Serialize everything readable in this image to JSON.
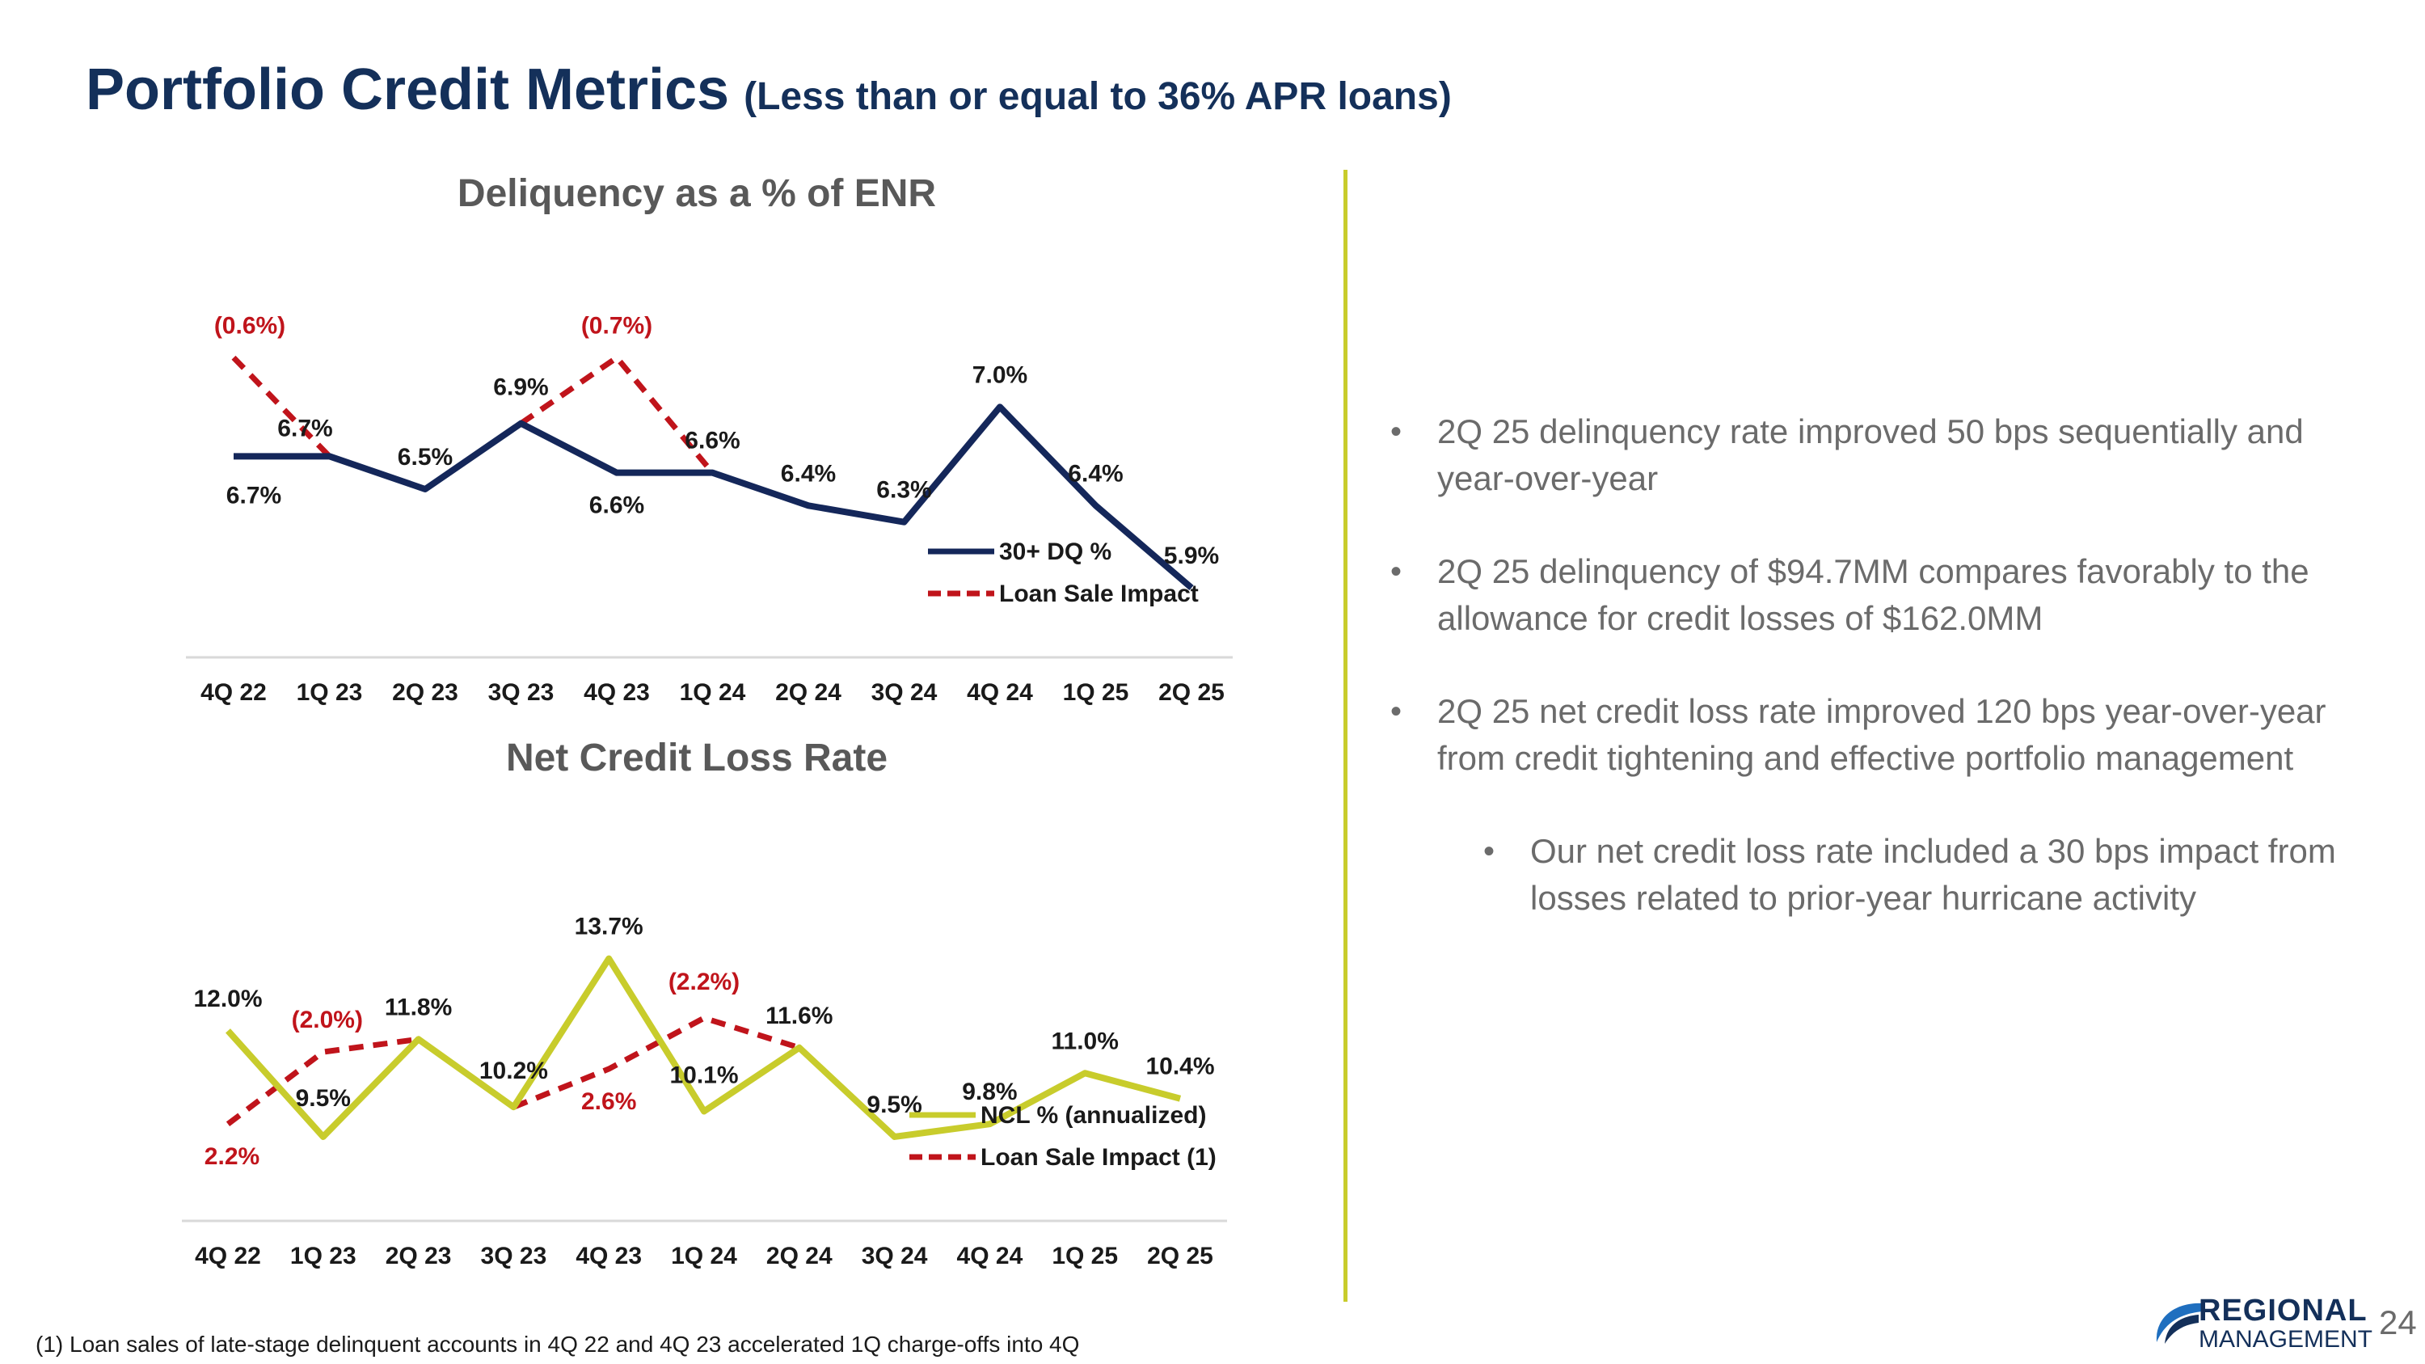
{
  "header": {
    "title": "Portfolio Credit Metrics",
    "subtitle": "(Less than or equal to 36% APR loans)"
  },
  "chart_data": [
    {
      "type": "line",
      "title": "Deliquency as a % of ENR",
      "categories": [
        "4Q 22",
        "1Q 23",
        "2Q 23",
        "3Q 23",
        "4Q 23",
        "1Q 24",
        "2Q 24",
        "3Q 24",
        "4Q 24",
        "1Q 25",
        "2Q 25"
      ],
      "ylim": [
        5.0,
        8.0
      ],
      "series": [
        {
          "name": "30+ DQ %",
          "color": "#14275a",
          "style": "solid",
          "values": [
            6.7,
            6.7,
            6.5,
            6.9,
            6.6,
            6.6,
            6.4,
            6.3,
            7.0,
            6.4,
            5.9
          ],
          "labels": [
            "6.7%",
            "6.7%",
            "6.5%",
            "6.9%",
            "6.6%",
            "6.6%",
            "6.4%",
            "6.3%",
            "7.0%",
            "6.4%",
            "5.9%"
          ]
        },
        {
          "name": "Loan Sale Impact",
          "color": "#c0141b",
          "style": "dashed",
          "segments": [
            {
              "x": [
                "4Q 22",
                "1Q 23"
              ],
              "values": [
                7.3,
                6.7
              ],
              "label": "(0.6%)"
            },
            {
              "x": [
                "3Q 23",
                "4Q 23",
                "1Q 24"
              ],
              "values": [
                6.9,
                7.3,
                6.6
              ],
              "label": "(0.7%)"
            }
          ]
        }
      ],
      "legend": [
        "30+ DQ %",
        "Loan Sale Impact"
      ]
    },
    {
      "type": "line",
      "title": "Net Credit Loss Rate",
      "categories": [
        "4Q 22",
        "1Q 23",
        "2Q 23",
        "3Q 23",
        "4Q 23",
        "1Q 24",
        "2Q 24",
        "3Q 24",
        "4Q 24",
        "1Q 25",
        "2Q 25"
      ],
      "ylim": [
        5.0,
        16.0
      ],
      "series": [
        {
          "name": "NCL % (annualized)",
          "color": "#c8cc2c",
          "style": "solid",
          "values": [
            12.0,
            9.5,
            11.8,
            10.2,
            13.7,
            10.1,
            11.6,
            9.5,
            9.8,
            11.0,
            10.4
          ],
          "labels": [
            "12.0%",
            "9.5%",
            "11.8%",
            "10.2%",
            "13.7%",
            "10.1%",
            "11.6%",
            "9.5%",
            "9.8%",
            "11.0%",
            "10.4%"
          ]
        },
        {
          "name": "Loan Sale Impact (1)",
          "color": "#c0141b",
          "style": "dashed",
          "segments": [
            {
              "x": [
                "4Q 22",
                "1Q 23",
                "2Q 23"
              ],
              "values": [
                9.8,
                11.5,
                11.8
              ],
              "labels": [
                "2.2%",
                "(2.0%)"
              ]
            },
            {
              "x": [
                "3Q 23",
                "4Q 23",
                "1Q 24",
                "2Q 24"
              ],
              "values": [
                10.2,
                11.1,
                12.3,
                11.6
              ],
              "labels": [
                "2.6%",
                "(2.2%)"
              ]
            }
          ]
        }
      ],
      "legend": [
        "NCL % (annualized)",
        "Loan Sale Impact (1)"
      ]
    }
  ],
  "bullets": [
    {
      "text": "2Q 25 delinquency rate improved 50 bps sequentially and year-over-year"
    },
    {
      "text": "2Q 25 delinquency of $94.7MM compares favorably to the allowance for credit losses of $162.0MM"
    },
    {
      "text": "2Q 25 net credit loss rate improved 120 bps year-over-year from credit tightening and effective portfolio management"
    },
    {
      "text": "Our net credit loss rate included a 30 bps impact from losses related to prior-year hurricane activity",
      "sub": true
    }
  ],
  "footnote": "(1) Loan sales of late-stage delinquent accounts in 4Q 22 and 4Q 23 accelerated 1Q charge-offs into 4Q",
  "logo": {
    "top": "REGIONAL",
    "bottom": "MANAGEMENT"
  },
  "page_number": "24"
}
